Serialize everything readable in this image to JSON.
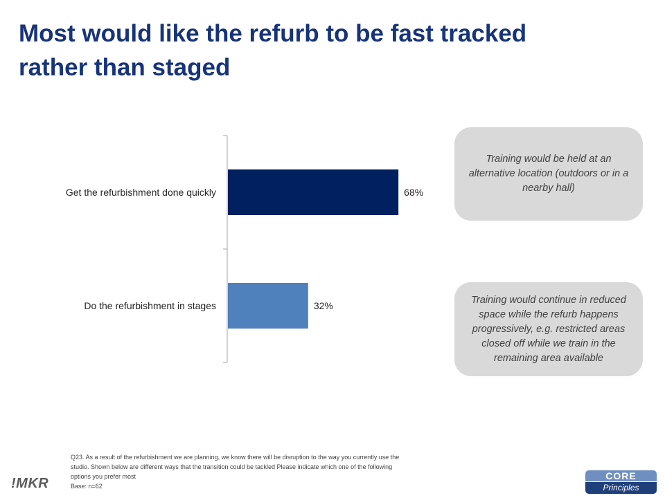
{
  "slide": {
    "title_line1": "Most would like the refurb to be fast tracked",
    "title_line2": "rather than staged"
  },
  "chart_data": {
    "type": "bar",
    "orientation": "horizontal",
    "categories": [
      "Get the refurbishment done quickly",
      "Do the refurbishment in stages"
    ],
    "values": [
      68,
      32
    ],
    "value_labels": [
      "68%",
      "32%"
    ],
    "bar_colors": [
      "#002060",
      "#4f81bd"
    ],
    "xlim": [
      0,
      100
    ],
    "title": "",
    "xlabel": "",
    "ylabel": "",
    "grid": false
  },
  "callouts": [
    {
      "text": "Training would be held at an alternative location (outdoors or in a nearby hall)"
    },
    {
      "text": "Training would continue in reduced space while the refurb happens progressively, e.g. restricted areas closed off while we train in the remaining area available"
    }
  ],
  "footnote": {
    "line1": "Q23. As a result of the refurbishment we are planning, we know there will be disruption to the way you currently use the",
    "line2": "studio. Shown below are different ways that the transition  could be tackled  Please indicate which one of the following",
    "line3": "options you prefer most",
    "base": "Base: n=62"
  },
  "logos": {
    "left": "!MKR",
    "right_top": "CORE",
    "right_bottom": "Principles"
  },
  "colors": {
    "title": "#17347a",
    "callout_bg": "#d9d9d9"
  }
}
